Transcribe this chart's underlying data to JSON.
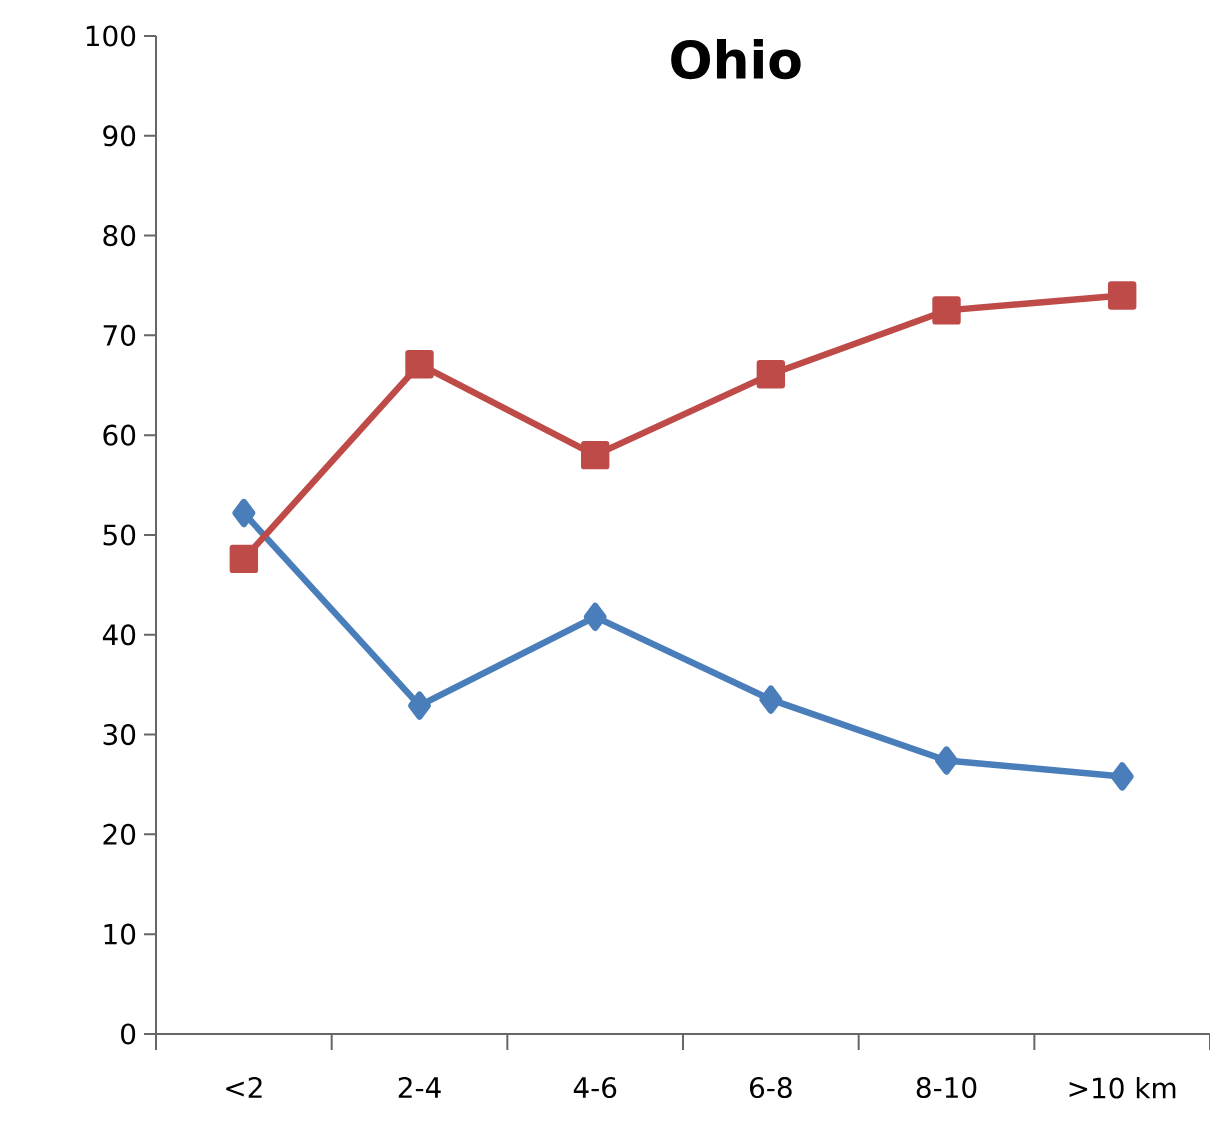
{
  "chart_data": {
    "type": "line",
    "title": "Ohio",
    "categories": [
      "<2",
      "2-4",
      "4-6",
      "6-8",
      "8-10",
      ">10 km"
    ],
    "series": [
      {
        "color": "#4a7ebb",
        "marker": "diamond",
        "values": [
          52.2,
          32.9,
          41.8,
          33.5,
          27.4,
          25.8
        ]
      },
      {
        "color": "#be4b48",
        "marker": "square",
        "values": [
          47.6,
          67.1,
          58.0,
          66.1,
          72.5,
          74.0
        ]
      }
    ],
    "ylim": [
      0,
      100
    ],
    "yticks": [
      0,
      10,
      20,
      30,
      40,
      50,
      60,
      70,
      80,
      90,
      100
    ],
    "grid": false
  }
}
